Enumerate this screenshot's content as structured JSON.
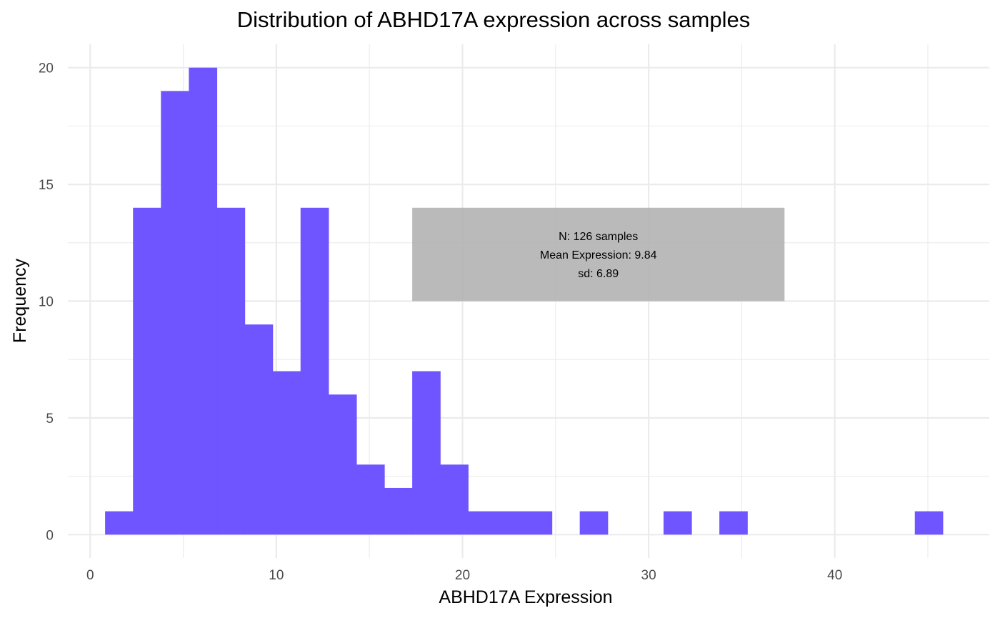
{
  "chart_data": {
    "type": "bar",
    "title": "Distribution of  ABHD17A  expression across samples",
    "xlabel": "ABHD17A  Expression",
    "ylabel": "Frequency",
    "xlim": [
      -1.2,
      48.3
    ],
    "ylim": [
      -1.0,
      21.0
    ],
    "x_ticks": [
      0,
      10,
      20,
      30,
      40
    ],
    "y_ticks": [
      0,
      5,
      10,
      15,
      20
    ],
    "grid": true,
    "bar_color": "#6e55ff",
    "bin_width": 1.5,
    "bins": [
      {
        "start": 0.8,
        "count": 1
      },
      {
        "start": 2.3,
        "count": 14
      },
      {
        "start": 3.8,
        "count": 19
      },
      {
        "start": 5.3,
        "count": 20
      },
      {
        "start": 6.8,
        "count": 14
      },
      {
        "start": 8.3,
        "count": 9
      },
      {
        "start": 9.8,
        "count": 7
      },
      {
        "start": 11.3,
        "count": 14
      },
      {
        "start": 12.8,
        "count": 6
      },
      {
        "start": 14.3,
        "count": 3
      },
      {
        "start": 15.8,
        "count": 2
      },
      {
        "start": 17.3,
        "count": 7
      },
      {
        "start": 18.8,
        "count": 3
      },
      {
        "start": 20.3,
        "count": 1
      },
      {
        "start": 21.8,
        "count": 1
      },
      {
        "start": 23.3,
        "count": 1
      },
      {
        "start": 26.3,
        "count": 1
      },
      {
        "start": 30.8,
        "count": 1
      },
      {
        "start": 33.8,
        "count": 1
      },
      {
        "start": 44.3,
        "count": 1
      }
    ],
    "annotation": {
      "lines": [
        "N: 126  samples",
        "Mean Expression: 9.84",
        "sd: 6.89"
      ],
      "x_range": [
        17.3,
        37.3
      ],
      "y_range": [
        10,
        14
      ],
      "fill": "#b3b3b3"
    }
  }
}
